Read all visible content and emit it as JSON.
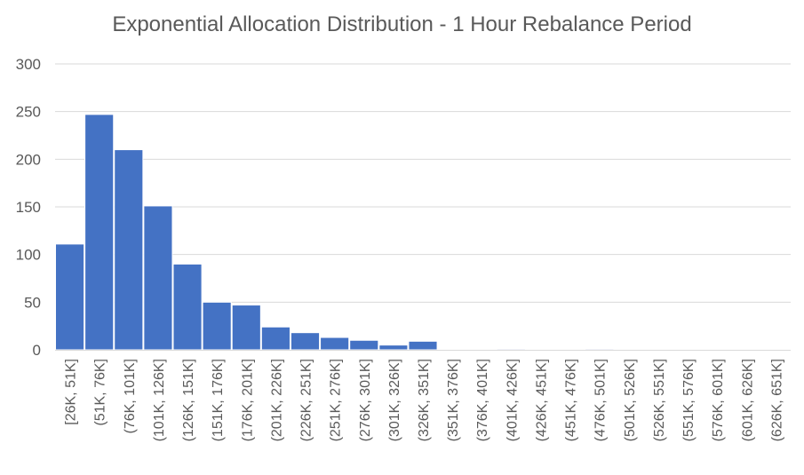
{
  "chart_data": {
    "type": "bar",
    "title": "Exponential Allocation Distribution - 1 Hour Rebalance Period",
    "xlabel": "",
    "ylabel": "",
    "ylim": [
      0,
      300
    ],
    "yticks": [
      0,
      50,
      100,
      150,
      200,
      250,
      300
    ],
    "grid": true,
    "bar_color": "#4472C4",
    "categories": [
      "[26K, 51K]",
      "(51K, 76K]",
      "(76K, 101K]",
      "(101K, 126K]",
      "(126K, 151K]",
      "(151K, 176K]",
      "(176K, 201K]",
      "(201K, 226K]",
      "(226K, 251K]",
      "(251K, 276K]",
      "(276K, 301K]",
      "(301K, 326K]",
      "(326K, 351K]",
      "(351K, 376K]",
      "(376K, 401K]",
      "(401K, 426K]",
      "(426K, 451K]",
      "(451K, 476K]",
      "(476K, 501K]",
      "(501K, 526K]",
      "(526K, 551K]",
      "(551K, 576K]",
      "(576K, 601K]",
      "(601K, 626K]",
      "(626K, 651K]"
    ],
    "values": [
      111,
      247,
      210,
      151,
      90,
      50,
      47,
      24,
      18,
      13,
      10,
      5,
      9,
      0,
      0,
      1,
      0,
      0,
      1,
      0,
      0,
      0,
      0,
      0,
      0
    ]
  }
}
